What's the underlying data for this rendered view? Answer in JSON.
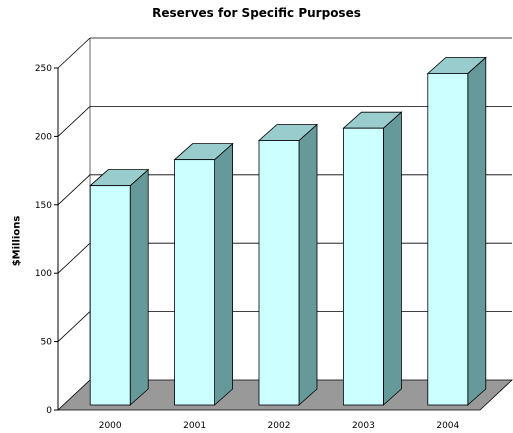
{
  "chart_data": {
    "type": "bar",
    "title": "Reserves for Specific Purposes",
    "xlabel": "",
    "ylabel": "$Millions",
    "categories": [
      "2000",
      "2001",
      "2002",
      "2003",
      "2004"
    ],
    "values": [
      164,
      183,
      197,
      206,
      246
    ],
    "ylim": [
      0,
      250
    ],
    "yticks": [
      0,
      50,
      100,
      150,
      200,
      250
    ],
    "grid": true,
    "bar_style": "3d",
    "colors": {
      "bar_front": "#ccffff",
      "bar_top": "#99cccc",
      "bar_side": "#669999",
      "floor": "#999999",
      "gridline": "#000000"
    }
  }
}
